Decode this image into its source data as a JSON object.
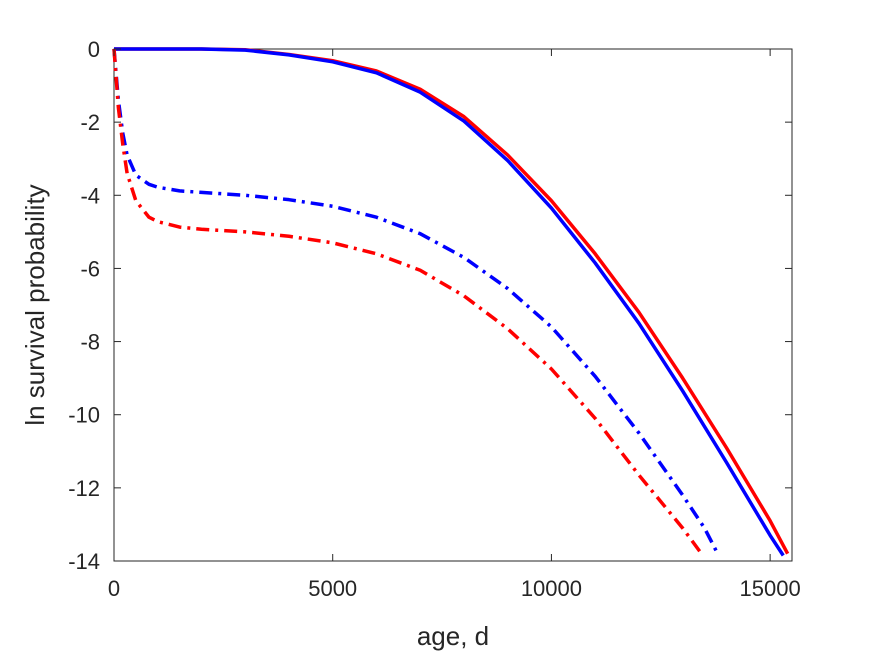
{
  "chart_data": {
    "type": "line",
    "title": "",
    "xlabel": "age, d",
    "ylabel": "ln survival probability",
    "xlim": [
      0,
      15500
    ],
    "ylim": [
      -14,
      0
    ],
    "grid": false,
    "legend": "none",
    "x_ticks": [
      {
        "value": 0,
        "label": "0"
      },
      {
        "value": 5000,
        "label": "5000"
      },
      {
        "value": 10000,
        "label": "10000"
      },
      {
        "value": 15000,
        "label": "15000"
      }
    ],
    "y_ticks": [
      {
        "value": 0,
        "label": "0"
      },
      {
        "value": -2,
        "label": "-2"
      },
      {
        "value": -4,
        "label": "-4"
      },
      {
        "value": -6,
        "label": "-6"
      },
      {
        "value": -8,
        "label": "-8"
      },
      {
        "value": -10,
        "label": "-10"
      },
      {
        "value": -12,
        "label": "-12"
      },
      {
        "value": -14,
        "label": "-14"
      }
    ],
    "series": [
      {
        "color": "#ff0000",
        "style": "solid",
        "x": [
          0,
          1000,
          2000,
          3000,
          4000,
          5000,
          6000,
          7000,
          8000,
          9000,
          10000,
          11000,
          12000,
          13000,
          14000,
          15000,
          15400
        ],
        "y": [
          0,
          0,
          0,
          -0.02,
          -0.15,
          -0.32,
          -0.6,
          -1.1,
          -1.85,
          -2.9,
          -4.15,
          -5.6,
          -7.2,
          -9.0,
          -10.9,
          -12.9,
          -13.8
        ]
      },
      {
        "color": "#0000ff",
        "style": "solid",
        "x": [
          0,
          1000,
          2000,
          3000,
          4000,
          5000,
          6000,
          7000,
          8000,
          9000,
          10000,
          11000,
          12000,
          13000,
          14000,
          15000,
          15300
        ],
        "y": [
          0,
          0,
          0,
          -0.03,
          -0.16,
          -0.35,
          -0.65,
          -1.18,
          -1.97,
          -3.05,
          -4.35,
          -5.85,
          -7.5,
          -9.35,
          -11.3,
          -13.3,
          -13.85
        ]
      },
      {
        "color": "#0000ff",
        "style": "dashdot",
        "x": [
          0,
          100,
          200,
          300,
          500,
          800,
          1000,
          1500,
          2000,
          3000,
          4000,
          5000,
          6000,
          7000,
          8000,
          9000,
          10000,
          11000,
          12000,
          13000,
          13500,
          13800
        ],
        "y": [
          0,
          -1.4,
          -2.3,
          -2.9,
          -3.45,
          -3.7,
          -3.78,
          -3.88,
          -3.92,
          -4.0,
          -4.12,
          -4.3,
          -4.6,
          -5.05,
          -5.7,
          -6.55,
          -7.6,
          -8.95,
          -10.5,
          -12.2,
          -13.1,
          -13.8
        ]
      },
      {
        "color": "#ff0000",
        "style": "dashdot",
        "x": [
          0,
          100,
          200,
          300,
          500,
          800,
          1000,
          1500,
          2000,
          3000,
          4000,
          5000,
          6000,
          7000,
          8000,
          9000,
          10000,
          11000,
          12000,
          13000,
          13400
        ],
        "y": [
          0,
          -1.6,
          -2.6,
          -3.4,
          -4.15,
          -4.6,
          -4.72,
          -4.87,
          -4.93,
          -5.0,
          -5.12,
          -5.3,
          -5.6,
          -6.05,
          -6.75,
          -7.65,
          -8.75,
          -10.1,
          -11.65,
          -13.1,
          -13.75
        ]
      }
    ]
  }
}
